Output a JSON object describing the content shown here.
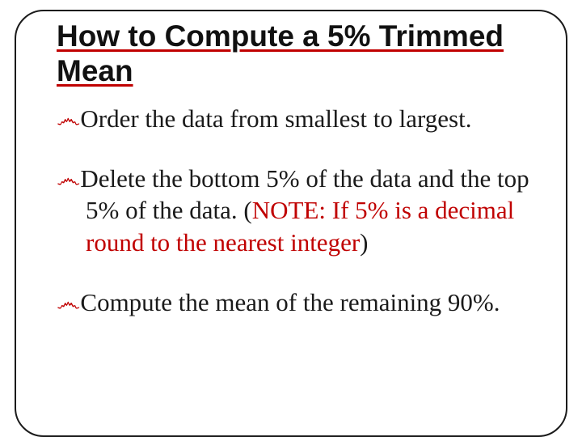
{
  "colors": {
    "accent": "#c00000",
    "text": "#1a1a1a",
    "border": "#1a1a1a",
    "background": "#ffffff"
  },
  "typography": {
    "title_family": "Arial",
    "title_weight": "bold",
    "title_size_pt": 28,
    "body_family": "Georgia",
    "body_size_pt": 24
  },
  "title": "How to Compute a 5% Trimmed Mean",
  "bullet_marker": "෴",
  "bullets": [
    {
      "text": "Order the data from smallest to largest."
    },
    {
      "text_lead": "Delete the bottom 5% of the data and the top 5% of the data.  (",
      "note": "NOTE:  If 5% is a decimal round to the nearest integer",
      "text_tail": ")"
    },
    {
      "text": "Compute the mean of the remaining 90%."
    }
  ]
}
